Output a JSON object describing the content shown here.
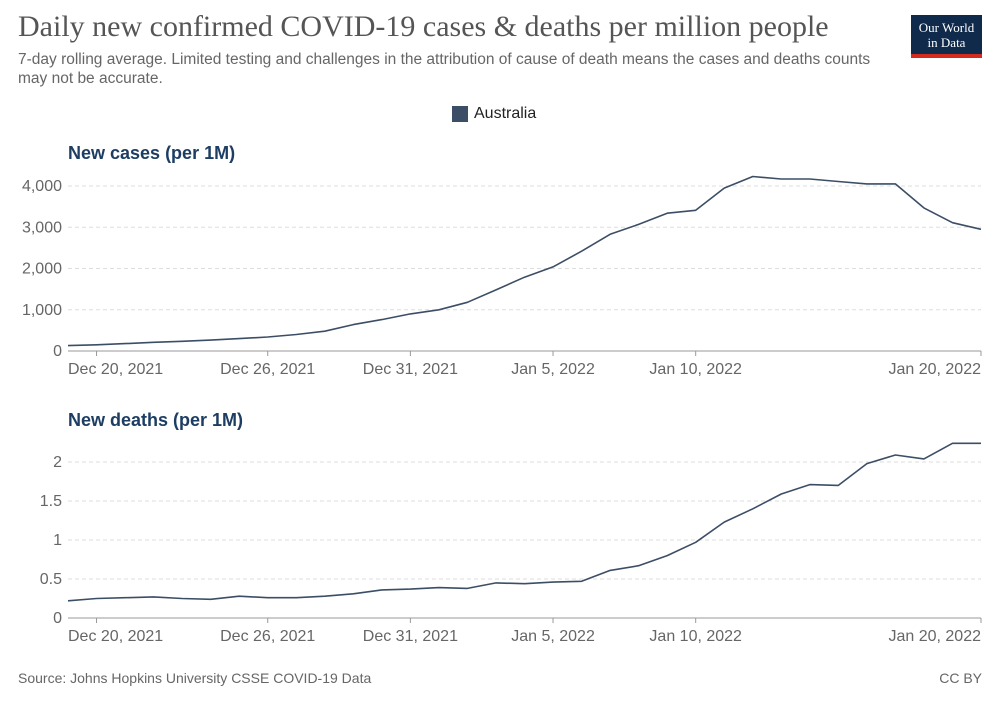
{
  "header": {
    "title": "Daily new confirmed COVID-19 cases & deaths per million people",
    "subtitle": "7-day rolling average. Limited testing and challenges in the attribution of cause of death means the cases and deaths counts may not be accurate."
  },
  "logo": {
    "line1": "Our World",
    "line2": "in Data",
    "bg_color": "#102a4c",
    "accent_color": "#d42b21"
  },
  "legend": {
    "label": "Australia",
    "color": "#3c4e66"
  },
  "footer": {
    "source": "Source: Johns Hopkins University CSSE COVID-19 Data",
    "license": "CC BY"
  },
  "chart_data": [
    {
      "type": "line",
      "title": "New cases (per 1M)",
      "x_start_label": "Dec 19, 2021",
      "x": [
        "Dec 19",
        "Dec 20",
        "Dec 21",
        "Dec 22",
        "Dec 23",
        "Dec 24",
        "Dec 25",
        "Dec 26",
        "Dec 27",
        "Dec 28",
        "Dec 29",
        "Dec 30",
        "Dec 31",
        "Jan 1",
        "Jan 2",
        "Jan 3",
        "Jan 4",
        "Jan 5",
        "Jan 6",
        "Jan 7",
        "Jan 8",
        "Jan 9",
        "Jan 10",
        "Jan 11",
        "Jan 12",
        "Jan 13",
        "Jan 14",
        "Jan 15",
        "Jan 16",
        "Jan 17",
        "Jan 18",
        "Jan 19",
        "Jan 20"
      ],
      "series": [
        {
          "name": "Australia",
          "color": "#3c4e66",
          "values": [
            130,
            150,
            180,
            210,
            235,
            265,
            300,
            340,
            400,
            480,
            640,
            760,
            900,
            1000,
            1180,
            1480,
            1790,
            2040,
            2420,
            2830,
            3070,
            3340,
            3410,
            3950,
            4230,
            4170,
            4170,
            4110,
            4050,
            4050,
            3470,
            3110,
            2950
          ]
        }
      ],
      "x_tick_labels": [
        "Dec 20, 2021",
        "Dec 26, 2021",
        "Dec 31, 2021",
        "Jan 5, 2022",
        "Jan 10, 2022",
        "Jan 20, 2022"
      ],
      "x_tick_dates": [
        "Dec 20",
        "Dec 26",
        "Dec 31",
        "Jan 5",
        "Jan 10",
        "Jan 20"
      ],
      "y_ticks": [
        0,
        1000,
        2000,
        3000,
        4000
      ],
      "y_tick_labels": [
        "0",
        "1,000",
        "2,000",
        "3,000",
        "4,000"
      ],
      "ylim": [
        0,
        4200
      ],
      "grid": true
    },
    {
      "type": "line",
      "title": "New deaths (per 1M)",
      "x": [
        "Dec 19",
        "Dec 20",
        "Dec 21",
        "Dec 22",
        "Dec 23",
        "Dec 24",
        "Dec 25",
        "Dec 26",
        "Dec 27",
        "Dec 28",
        "Dec 29",
        "Dec 30",
        "Dec 31",
        "Jan 1",
        "Jan 2",
        "Jan 3",
        "Jan 4",
        "Jan 5",
        "Jan 6",
        "Jan 7",
        "Jan 8",
        "Jan 9",
        "Jan 10",
        "Jan 11",
        "Jan 12",
        "Jan 13",
        "Jan 14",
        "Jan 15",
        "Jan 16",
        "Jan 17",
        "Jan 18",
        "Jan 19",
        "Jan 20"
      ],
      "series": [
        {
          "name": "Australia",
          "color": "#3c4e66",
          "values": [
            0.22,
            0.25,
            0.26,
            0.27,
            0.25,
            0.24,
            0.28,
            0.26,
            0.26,
            0.28,
            0.31,
            0.36,
            0.37,
            0.39,
            0.38,
            0.45,
            0.44,
            0.46,
            0.47,
            0.61,
            0.67,
            0.8,
            0.97,
            1.23,
            1.4,
            1.59,
            1.71,
            1.7,
            1.98,
            2.09,
            2.04,
            2.24,
            2.24
          ]
        }
      ],
      "x_tick_labels": [
        "Dec 20, 2021",
        "Dec 26, 2021",
        "Dec 31, 2021",
        "Jan 5, 2022",
        "Jan 10, 2022",
        "Jan 20, 2022"
      ],
      "x_tick_dates": [
        "Dec 20",
        "Dec 26",
        "Dec 31",
        "Jan 5",
        "Jan 10",
        "Jan 20"
      ],
      "y_ticks": [
        0,
        0.5,
        1,
        1.5,
        2
      ],
      "y_tick_labels": [
        "0",
        "0.5",
        "1",
        "1.5",
        "2"
      ],
      "ylim": [
        0,
        2.3
      ],
      "grid": true
    }
  ]
}
